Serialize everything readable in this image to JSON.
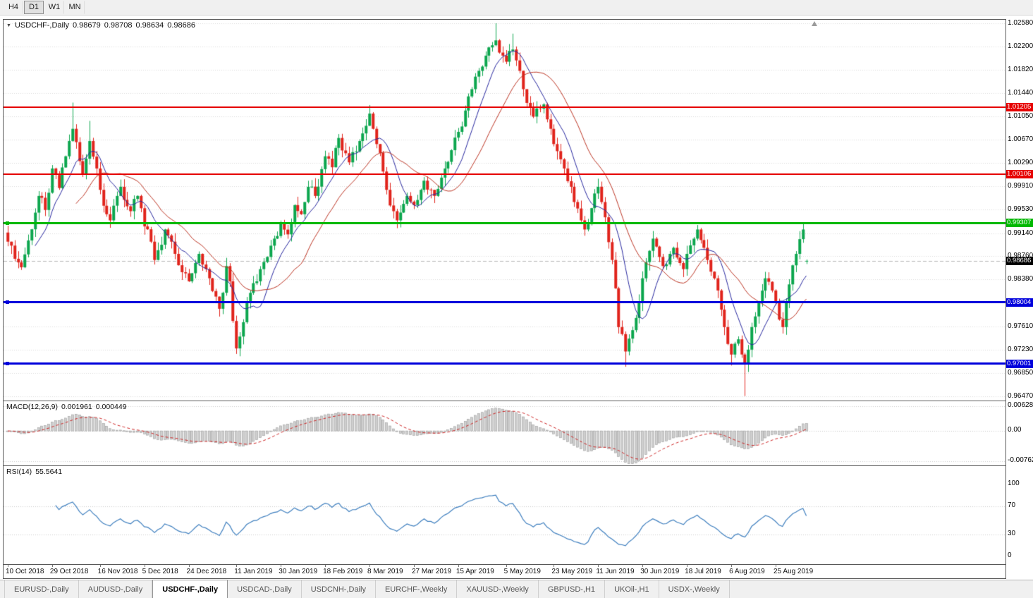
{
  "toolbar": {
    "timeframe_buttons": [
      {
        "label": "H4",
        "active": false
      },
      {
        "label": "D1",
        "active": true
      },
      {
        "label": "W1",
        "active": false
      },
      {
        "label": "MN",
        "active": false
      }
    ]
  },
  "chart_header": {
    "symbol_period": "USDCHF-,Daily",
    "open": "0.98679",
    "high": "0.98708",
    "low": "0.98634",
    "close": "0.98686"
  },
  "price_axis": {
    "ticks": [
      {
        "label": "1.02580",
        "value": 1.0258
      },
      {
        "label": "1.02200",
        "value": 1.022
      },
      {
        "label": "1.01820",
        "value": 1.0182
      },
      {
        "label": "1.01440",
        "value": 1.0144
      },
      {
        "label": "1.01050",
        "value": 1.0105
      },
      {
        "label": "1.00670",
        "value": 1.0067
      },
      {
        "label": "1.00290",
        "value": 1.0029
      },
      {
        "label": "0.99910",
        "value": 0.9991
      },
      {
        "label": "0.99530",
        "value": 0.9953
      },
      {
        "label": "0.99140",
        "value": 0.9914
      },
      {
        "label": "0.98760",
        "value": 0.9876
      },
      {
        "label": "0.98380",
        "value": 0.9838
      },
      {
        "label": "",
        "value": 0.98
      },
      {
        "label": "0.97610",
        "value": 0.9761
      },
      {
        "label": "0.97230",
        "value": 0.9723
      },
      {
        "label": "0.96850",
        "value": 0.9685
      },
      {
        "label": "0.96470",
        "value": 0.9647
      }
    ]
  },
  "levels": [
    {
      "price": 1.01205,
      "label": "1.01205",
      "color": "#e60000",
      "thickness": 2,
      "handle": false
    },
    {
      "price": 1.00106,
      "label": "1.00106",
      "color": "#e60000",
      "thickness": 2,
      "handle": false
    },
    {
      "price": 0.99307,
      "label": "0.99307",
      "color": "#00b800",
      "thickness": 3,
      "handle": true
    },
    {
      "price": 0.98004,
      "label": "0.98004",
      "color": "#0000dc",
      "thickness": 3,
      "handle": true
    },
    {
      "price": 0.97001,
      "label": "0.97001",
      "color": "#0000dc",
      "thickness": 3,
      "handle": true
    }
  ],
  "current_price": {
    "label": "0.98686",
    "value": 0.98686,
    "badge_color": "#000000"
  },
  "macd_panel": {
    "label": "MACD(12,26,9)",
    "value_macd": "0.001961",
    "value_signal": "0.000449",
    "axis": [
      {
        "label": "0.006286",
        "value": 0.006286
      },
      {
        "label": "0.00",
        "value": 0
      },
      {
        "label": "-0.00762",
        "value": -0.00762
      }
    ]
  },
  "rsi_panel": {
    "label": "RSI(14)",
    "value": "55.5641",
    "axis": [
      {
        "label": "100",
        "value": 100
      },
      {
        "label": "70",
        "value": 70
      },
      {
        "label": "30",
        "value": 30
      },
      {
        "label": "0",
        "value": 0
      }
    ],
    "guide_levels": [
      70,
      30
    ]
  },
  "date_axis": {
    "labels": [
      {
        "text": "10 Oct 2018",
        "i": 0
      },
      {
        "text": "29 Oct 2018",
        "i": 13
      },
      {
        "text": "16 Nov 2018",
        "i": 27
      },
      {
        "text": "5 Dec 2018",
        "i": 40
      },
      {
        "text": "24 Dec 2018",
        "i": 53
      },
      {
        "text": "11 Jan 2019",
        "i": 67
      },
      {
        "text": "30 Jan 2019",
        "i": 80
      },
      {
        "text": "18 Feb 2019",
        "i": 93
      },
      {
        "text": "8 Mar 2019",
        "i": 106
      },
      {
        "text": "27 Mar 2019",
        "i": 119
      },
      {
        "text": "15 Apr 2019",
        "i": 132
      },
      {
        "text": "5 May 2019",
        "i": 146
      },
      {
        "text": "23 May 2019",
        "i": 160
      },
      {
        "text": "11 Jun 2019",
        "i": 173
      },
      {
        "text": "30 Jun 2019",
        "i": 186
      },
      {
        "text": "18 Jul 2019",
        "i": 199
      },
      {
        "text": "6 Aug 2019",
        "i": 212
      },
      {
        "text": "25 Aug 2019",
        "i": 225
      }
    ]
  },
  "tabs": [
    {
      "label": "EURUSD-,Daily",
      "active": false
    },
    {
      "label": "AUDUSD-,Daily",
      "active": false
    },
    {
      "label": "USDCHF-,Daily",
      "active": true
    },
    {
      "label": "USDCAD-,Daily",
      "active": false
    },
    {
      "label": "USDCNH-,Daily",
      "active": false
    },
    {
      "label": "EURCHF-,Weekly",
      "active": false
    },
    {
      "label": "XAUUSD-,Weekly",
      "active": false
    },
    {
      "label": "GBPUSD-,H1",
      "active": false
    },
    {
      "label": "UKOil-,H1",
      "active": false
    },
    {
      "label": "USDX-,Weekly",
      "active": false
    }
  ],
  "chart_data": {
    "type": "candlestick",
    "title": "USDCHF-,Daily",
    "symbol": "USDCHF-",
    "timeframe": "Daily",
    "n_candles": 235,
    "ylim": [
      0.96396,
      1.02638
    ],
    "last_ohlc": {
      "o": 0.98679,
      "h": 0.98708,
      "l": 0.98634,
      "c": 0.98686
    },
    "resistance_levels": [
      1.01205,
      1.00106
    ],
    "pivot_level": 0.99307,
    "support_levels": [
      0.98004,
      0.97001
    ],
    "colors": {
      "up": "#0ca64e",
      "down": "#e0241c",
      "ma_fast": "#26269e",
      "ma_slow": "#bb3322",
      "macd_hist": "#d0d0d0",
      "macd_signal": "#cc2222",
      "rsi_line": "#3d7ebe"
    },
    "overlays": [
      {
        "name": "ma-fast",
        "type": "sma",
        "period": 9
      },
      {
        "name": "ma-slow",
        "type": "sma",
        "period": 21
      }
    ],
    "indicators": [
      {
        "name": "MACD",
        "params": [
          12,
          26,
          9
        ],
        "current": [
          0.001961,
          0.000449
        ]
      },
      {
        "name": "RSI",
        "params": [
          14
        ],
        "current": 55.5641
      }
    ],
    "close_path": [
      [
        0,
        0.99
      ],
      [
        2,
        0.9872
      ],
      [
        4,
        0.9858
      ],
      [
        6,
        0.9902
      ],
      [
        9,
        0.9975
      ],
      [
        11,
        0.9952
      ],
      [
        13,
        1.002
      ],
      [
        15,
        0.9988
      ],
      [
        17,
        1.004
      ],
      [
        19,
        1.0085
      ],
      [
        21,
        1.0032
      ],
      [
        22,
        1.001
      ],
      [
        24,
        1.0065
      ],
      [
        26,
        1.002
      ],
      [
        27,
        0.9985
      ],
      [
        29,
        0.9945
      ],
      [
        30,
        0.9935
      ],
      [
        32,
        0.9975
      ],
      [
        33,
        0.999
      ],
      [
        35,
        0.9958
      ],
      [
        36,
        0.995
      ],
      [
        38,
        0.9975
      ],
      [
        40,
        0.9925
      ],
      [
        42,
        0.99
      ],
      [
        43,
        0.987
      ],
      [
        45,
        0.9895
      ],
      [
        46,
        0.992
      ],
      [
        48,
        0.99
      ],
      [
        49,
        0.988
      ],
      [
        51,
        0.985
      ],
      [
        53,
        0.9835
      ],
      [
        55,
        0.9865
      ],
      [
        56,
        0.988
      ],
      [
        58,
        0.9855
      ],
      [
        59,
        0.984
      ],
      [
        61,
        0.981
      ],
      [
        62,
        0.979
      ],
      [
        64,
        0.986
      ],
      [
        65,
        0.9835
      ],
      [
        66,
        0.977
      ],
      [
        67,
        0.9725
      ],
      [
        69,
        0.9768
      ],
      [
        70,
        0.98
      ],
      [
        72,
        0.9832
      ],
      [
        74,
        0.9855
      ],
      [
        76,
        0.9875
      ],
      [
        78,
        0.9905
      ],
      [
        80,
        0.993
      ],
      [
        82,
        0.9912
      ],
      [
        84,
        0.996
      ],
      [
        86,
        0.9945
      ],
      [
        88,
        0.999
      ],
      [
        90,
        0.9975
      ],
      [
        93,
        1.004
      ],
      [
        95,
        1.0022
      ],
      [
        97,
        1.007
      ],
      [
        99,
        1.0045
      ],
      [
        100,
        1.003
      ],
      [
        102,
        1.0048
      ],
      [
        103,
        1.0065
      ],
      [
        105,
        1.009
      ],
      [
        106,
        1.011
      ],
      [
        107,
        1.0085
      ],
      [
        108,
        1.006
      ],
      [
        110,
        1.0015
      ],
      [
        111,
        0.9985
      ],
      [
        113,
        0.995
      ],
      [
        114,
        0.9935
      ],
      [
        116,
        0.9962
      ],
      [
        117,
        0.9975
      ],
      [
        119,
        0.996
      ],
      [
        121,
        0.9985
      ],
      [
        122,
        1.0
      ],
      [
        124,
        0.9985
      ],
      [
        125,
        0.9975
      ],
      [
        127,
        1.0005
      ],
      [
        128,
        1.002
      ],
      [
        130,
        1.005
      ],
      [
        132,
        1.008
      ],
      [
        134,
        1.0115
      ],
      [
        136,
        1.015
      ],
      [
        138,
        1.018
      ],
      [
        140,
        1.0205
      ],
      [
        142,
        1.0222
      ],
      [
        143,
        1.023
      ],
      [
        145,
        1.0205
      ],
      [
        146,
        1.0195
      ],
      [
        148,
        1.0215
      ],
      [
        150,
        1.018
      ],
      [
        151,
        1.015
      ],
      [
        153,
        1.012
      ],
      [
        154,
        1.0105
      ],
      [
        156,
        1.0118
      ],
      [
        157,
        1.0125
      ],
      [
        159,
        1.0085
      ],
      [
        160,
        1.006
      ],
      [
        162,
        1.0035
      ],
      [
        163,
        1.002
      ],
      [
        165,
        0.999
      ],
      [
        166,
        0.9965
      ],
      [
        168,
        0.9935
      ],
      [
        169,
        0.992
      ],
      [
        171,
        0.9955
      ],
      [
        173,
        0.999
      ],
      [
        175,
        0.994
      ],
      [
        177,
        0.987
      ],
      [
        179,
        0.976
      ],
      [
        181,
        0.972
      ],
      [
        183,
        0.9755
      ],
      [
        184,
        0.9775
      ],
      [
        186,
        0.984
      ],
      [
        188,
        0.9885
      ],
      [
        189,
        0.9905
      ],
      [
        191,
        0.9875
      ],
      [
        192,
        0.986
      ],
      [
        194,
        0.988
      ],
      [
        195,
        0.989
      ],
      [
        197,
        0.9865
      ],
      [
        198,
        0.9855
      ],
      [
        199,
        0.988
      ],
      [
        201,
        0.9905
      ],
      [
        202,
        0.992
      ],
      [
        204,
        0.989
      ],
      [
        205,
        0.987
      ],
      [
        207,
        0.984
      ],
      [
        208,
        0.982
      ],
      [
        210,
        0.976
      ],
      [
        212,
        0.9715
      ],
      [
        214,
        0.974
      ],
      [
        216,
        0.97
      ],
      [
        218,
        0.976
      ],
      [
        220,
        0.98
      ],
      [
        222,
        0.984
      ],
      [
        224,
        0.982
      ],
      [
        225,
        0.98
      ],
      [
        227,
        0.976
      ],
      [
        229,
        0.983
      ],
      [
        231,
        0.988
      ],
      [
        233,
        0.992
      ],
      [
        234,
        0.98686
      ]
    ],
    "wick_extremes": [
      {
        "i": 19,
        "h": 1.0128
      },
      {
        "i": 24,
        "h": 1.0098
      },
      {
        "i": 67,
        "l": 0.9716
      },
      {
        "i": 106,
        "h": 1.0124
      },
      {
        "i": 143,
        "h": 1.0258
      },
      {
        "i": 148,
        "h": 1.0241
      },
      {
        "i": 181,
        "l": 0.9695
      },
      {
        "i": 212,
        "l": 0.9697
      },
      {
        "i": 216,
        "l": 0.9647
      },
      {
        "i": 233,
        "h": 0.9931
      }
    ]
  }
}
